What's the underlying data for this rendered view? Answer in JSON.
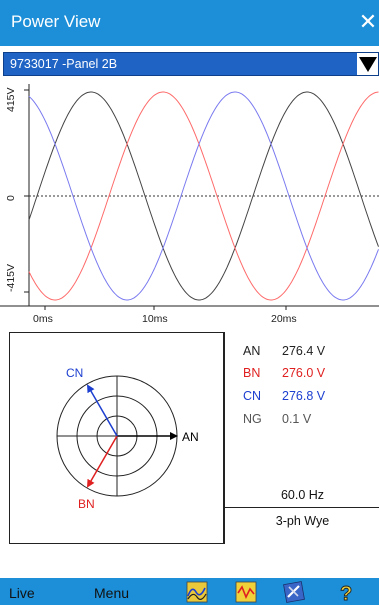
{
  "window": {
    "title": "Power View",
    "close_glyph": "✕"
  },
  "device": {
    "selected": "9733017 -Panel 2B"
  },
  "waveform": {
    "y_top_label": "415V",
    "y_zero_label": "0",
    "y_bottom_label": "-415V",
    "x_labels": [
      "0ms",
      "10ms",
      "20ms"
    ],
    "series_colors": {
      "AN": "#444444",
      "BN": "#ff6a6a",
      "CN": "#7a7af0"
    }
  },
  "phasor": {
    "labels": {
      "an": "AN",
      "bn": "BN",
      "cn": "CN"
    },
    "colors": {
      "an": "#000000",
      "bn": "#e02020",
      "cn": "#1d3fd0"
    }
  },
  "readings": [
    {
      "label": "AN",
      "value": "276.4 V",
      "color": "#222222"
    },
    {
      "label": "BN",
      "value": "276.0 V",
      "color": "#e02020"
    },
    {
      "label": "CN",
      "value": "276.8 V",
      "color": "#1d3fd0"
    },
    {
      "label": "NG",
      "value": "0.1 V",
      "color": "#555555"
    }
  ],
  "frequency": "60.0 Hz",
  "wiring": "3-ph Wye",
  "toolbar": {
    "live_label": "Live",
    "menu_label": "Menu",
    "icons": [
      "waveform-view-icon",
      "harmonics-icon",
      "tools-icon",
      "help-icon"
    ]
  }
}
